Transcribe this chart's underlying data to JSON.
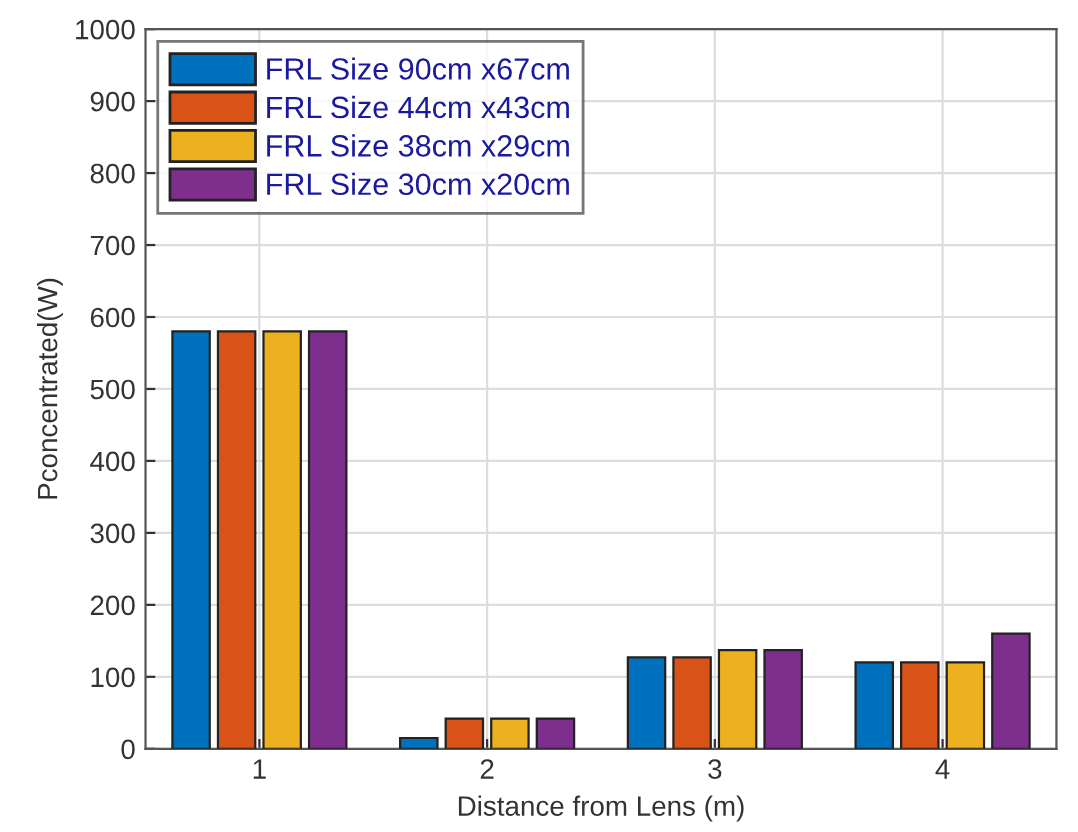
{
  "chart_data": {
    "type": "bar",
    "xlabel": "Distance from Lens (m)",
    "ylabel": "Pconcentrated(W)",
    "categories": [
      "1",
      "2",
      "3",
      "4"
    ],
    "series": [
      {
        "name": "FRL Size 90cm x67cm",
        "color": "#0072bd",
        "values": [
          580,
          15,
          127,
          120
        ]
      },
      {
        "name": "FRL Size 44cm x43cm",
        "color": "#d95319",
        "values": [
          580,
          42,
          127,
          120
        ]
      },
      {
        "name": "FRL Size 38cm x29cm",
        "color": "#edb120",
        "values": [
          580,
          42,
          137,
          120
        ]
      },
      {
        "name": "FRL Size 30cm x20cm",
        "color": "#7e2f8e",
        "values": [
          580,
          42,
          137,
          160
        ]
      }
    ],
    "ylim": [
      0,
      1000
    ],
    "yticks": [
      0,
      100,
      200,
      300,
      400,
      500,
      600,
      700,
      800,
      900,
      1000
    ],
    "grid": true,
    "legend": "top left"
  }
}
